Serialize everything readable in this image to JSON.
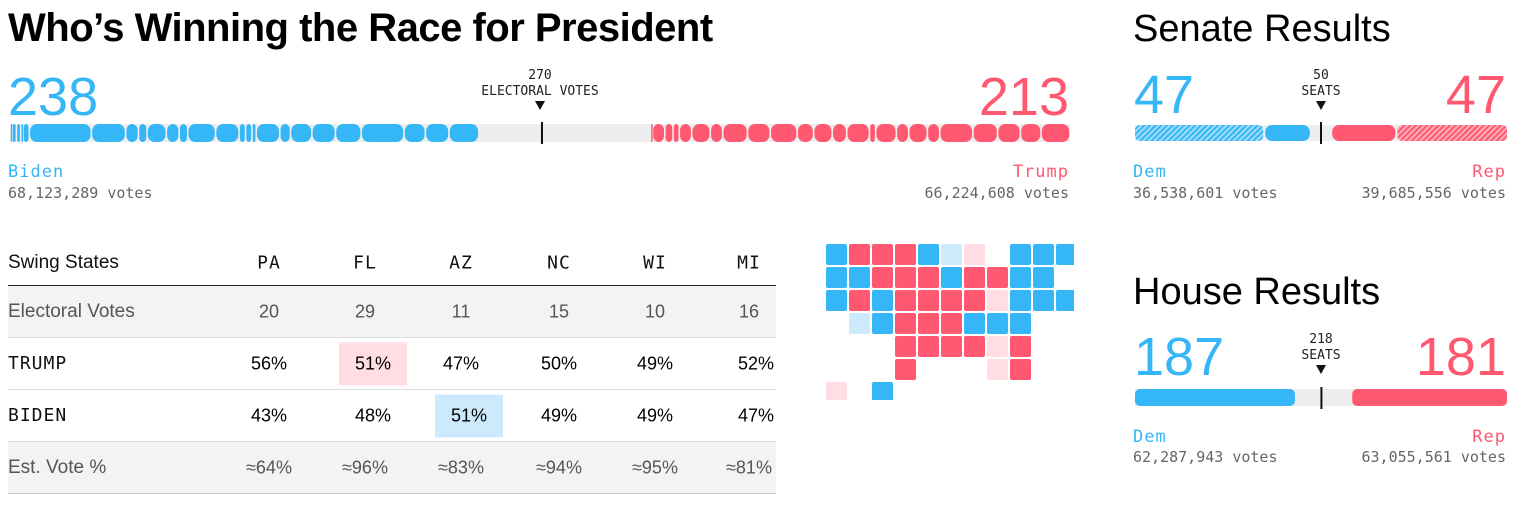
{
  "title": "Who’s Winning the Race for President",
  "president": {
    "dem_count": "238",
    "rep_count": "213",
    "threshold_value": "270",
    "threshold_label": "ELECTORAL VOTES",
    "dem_name": "Biden",
    "dem_votes": "68,123,289 votes",
    "rep_name": "Trump",
    "rep_votes": "66,224,608 votes",
    "total": 538,
    "dem_value": 238,
    "rep_value": 213
  },
  "senate": {
    "title": "Senate Results",
    "dem_count": "47",
    "rep_count": "47",
    "threshold_value": "50",
    "threshold_label": "SEATS",
    "dem_name": "Dem",
    "dem_votes": "36,538,601 votes",
    "rep_name": "Rep",
    "rep_votes": "39,685,556 votes",
    "total": 100,
    "dem_holdover": 35,
    "dem_new": 12,
    "rep_new": 17,
    "rep_holdover": 30
  },
  "house": {
    "title": "House Results",
    "dem_count": "187",
    "rep_count": "181",
    "threshold_value": "218",
    "threshold_label": "SEATS",
    "dem_name": "Dem",
    "dem_votes": "62,287,943 votes",
    "rep_name": "Rep",
    "rep_votes": "63,055,561 votes",
    "total": 435,
    "dem_value": 187,
    "rep_value": 181
  },
  "swing_table": {
    "header_label": "Swing States",
    "states": [
      "PA",
      "FL",
      "AZ",
      "NC",
      "WI",
      "MI"
    ],
    "rows": [
      {
        "label": "Electoral Votes",
        "values": [
          "20",
          "29",
          "11",
          "15",
          "10",
          "16"
        ],
        "highlight": [
          null,
          null,
          null,
          null,
          null,
          null
        ]
      },
      {
        "label": "TRUMP",
        "values": [
          "56%",
          "51%",
          "47%",
          "50%",
          "49%",
          "52%"
        ],
        "highlight": [
          null,
          "red",
          null,
          null,
          null,
          null
        ]
      },
      {
        "label": "BIDEN",
        "values": [
          "43%",
          "48%",
          "51%",
          "49%",
          "49%",
          "47%"
        ],
        "highlight": [
          null,
          null,
          "blue",
          null,
          null,
          null
        ]
      },
      {
        "label": "Est. Vote %",
        "values": [
          "≈64%",
          "≈96%",
          "≈83%",
          "≈94%",
          "≈95%",
          "≈81%"
        ],
        "highlight": [
          null,
          null,
          null,
          null,
          null,
          null
        ]
      }
    ]
  },
  "colors": {
    "dem": "#35b6f7",
    "rep": "#ff5870",
    "dem_light": "#cdeafc",
    "rep_light": "#ffdde2",
    "pending": "#eeeeee"
  },
  "map": {
    "dem_states": [
      "WA",
      "OR",
      "CA",
      "NV",
      "CO",
      "NM",
      "MN",
      "IL",
      "VA",
      "MD",
      "DE",
      "NJ",
      "NY",
      "CT",
      "RI",
      "MA",
      "VT",
      "NH",
      "ME",
      "HI"
    ],
    "rep_states": [
      "ID",
      "MT",
      "WY",
      "UT",
      "ND",
      "SD",
      "NE",
      "KS",
      "OK",
      "TX",
      "IA",
      "MO",
      "AR",
      "LA",
      "MS",
      "AL",
      "TN",
      "KY",
      "IN",
      "OH",
      "WV",
      "FL",
      "SC"
    ],
    "lean_dem_states": [
      "AZ",
      "WI"
    ],
    "lean_rep_states": [
      "MI",
      "PA",
      "GA",
      "NC",
      "AK"
    ]
  }
}
